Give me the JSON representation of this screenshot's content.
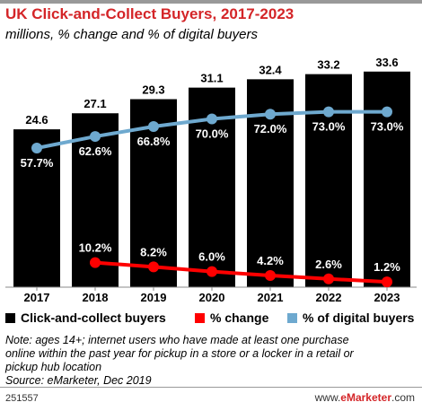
{
  "header": {
    "title": "UK Click-and-Collect Buyers, 2017-2023",
    "subtitle": "millions, % change and % of digital buyers"
  },
  "chart_data": {
    "type": "bar",
    "categories": [
      "2017",
      "2018",
      "2019",
      "2020",
      "2021",
      "2022",
      "2023"
    ],
    "series": [
      {
        "name": "Click-and-collect buyers",
        "type": "bar",
        "color": "#000000",
        "values": [
          24.6,
          27.1,
          29.3,
          31.1,
          32.4,
          33.2,
          33.6
        ],
        "labels": [
          "24.6",
          "27.1",
          "29.3",
          "31.1",
          "32.4",
          "33.2",
          "33.6"
        ]
      },
      {
        "name": "% change",
        "type": "line",
        "color": "#ff0000",
        "values": [
          null,
          10.2,
          8.2,
          6.0,
          4.2,
          2.6,
          1.2
        ],
        "labels": [
          "",
          "10.2%",
          "8.2%",
          "6.0%",
          "4.2%",
          "2.6%",
          "1.2%"
        ]
      },
      {
        "name": "% of digital buyers",
        "type": "line",
        "color": "#6ea9cf",
        "values": [
          57.7,
          62.6,
          66.8,
          70.0,
          72.0,
          73.0,
          73.0
        ],
        "labels": [
          "57.7%",
          "62.6%",
          "66.8%",
          "70.0%",
          "72.0%",
          "73.0%",
          "73.0%"
        ]
      }
    ],
    "legend": "bottom",
    "grid": false
  },
  "footer": {
    "note_line1": "Note: ages 14+; internet users who have made at least one purchase",
    "note_line2": "online within the past year for pickup in a store or a locker in a retail or",
    "note_line3": "pickup hub location",
    "source": "Source: eMarketer, Dec 2019",
    "chart_id": "251557",
    "brand_prefix": "www.",
    "brand_name": "eMarketer",
    "brand_suffix": ".com"
  }
}
